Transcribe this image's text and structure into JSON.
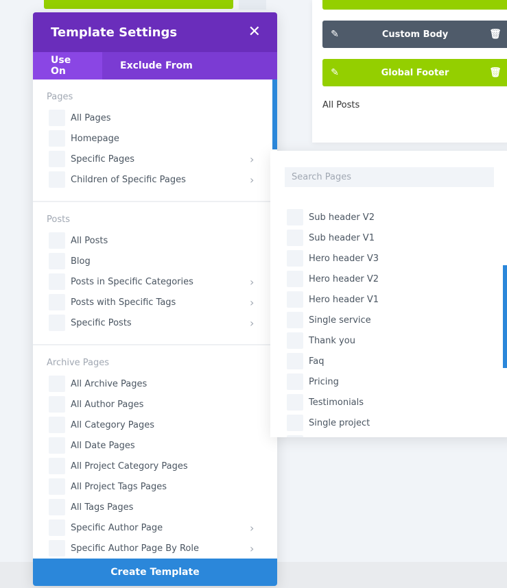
{
  "background": {
    "bars": [
      {
        "label": "Custom Body",
        "color": "#4f5b6a"
      },
      {
        "label": "Global Footer",
        "color": "#94cf00"
      }
    ],
    "card_text": "All Posts"
  },
  "modal": {
    "title": "Template Settings",
    "tabs": [
      {
        "label": "Use On",
        "active": true
      },
      {
        "label": "Exclude From",
        "active": false
      }
    ],
    "sections": [
      {
        "title": "Pages",
        "items": [
          {
            "label": "All Pages"
          },
          {
            "label": "Homepage"
          },
          {
            "label": "Specific Pages",
            "chevron": true
          },
          {
            "label": "Children of Specific Pages",
            "chevron": true
          }
        ]
      },
      {
        "title": "Posts",
        "items": [
          {
            "label": "All Posts"
          },
          {
            "label": "Blog"
          },
          {
            "label": "Posts in Specific Categories",
            "chevron": true
          },
          {
            "label": "Posts with Specific Tags",
            "chevron": true
          },
          {
            "label": "Specific Posts",
            "chevron": true
          }
        ]
      },
      {
        "title": "Archive Pages",
        "items": [
          {
            "label": "All Archive Pages"
          },
          {
            "label": "All Author Pages"
          },
          {
            "label": "All Category Pages"
          },
          {
            "label": "All Date Pages"
          },
          {
            "label": "All Project Category Pages"
          },
          {
            "label": "All Project Tags Pages"
          },
          {
            "label": "All Tags Pages"
          },
          {
            "label": "Specific Author Page",
            "chevron": true
          },
          {
            "label": "Specific Author Page By Role",
            "chevron": true
          }
        ]
      }
    ],
    "create_label": "Create Template"
  },
  "panel": {
    "search_placeholder": "Search Pages",
    "pages": [
      "Sub header V2",
      "Sub header V1",
      "Hero header V3",
      "Hero header V2",
      "Hero header V1",
      "Single service",
      "Thank you",
      "Faq",
      "Pricing",
      "Testimonials",
      "Single project"
    ]
  },
  "colors": {
    "purple": "#6a2dbb",
    "tab": "#7b3bd3",
    "active_tab": "#8a46e4",
    "blue": "#2b87da",
    "green": "#94cf00"
  }
}
